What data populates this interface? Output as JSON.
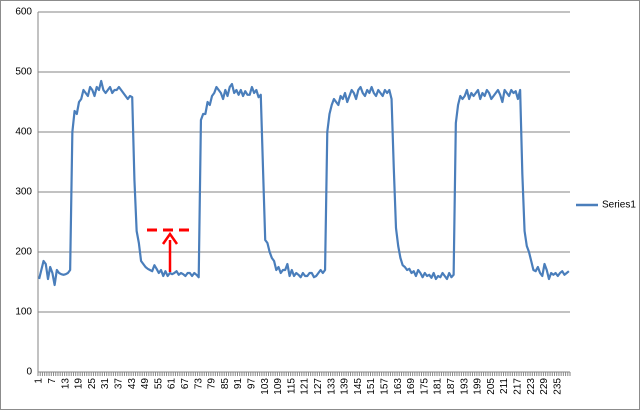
{
  "chart_data": {
    "type": "line",
    "categories": [
      1,
      null,
      null,
      null,
      null,
      null,
      7,
      null,
      null,
      null,
      null,
      null,
      13,
      null,
      null,
      null,
      null,
      null,
      19,
      null,
      null,
      null,
      null,
      null,
      25,
      null,
      null,
      null,
      null,
      null,
      31,
      null,
      null,
      null,
      null,
      null,
      37,
      null,
      null,
      null,
      null,
      null,
      43,
      null,
      null,
      null,
      null,
      null,
      49,
      null,
      null,
      null,
      null,
      null,
      55,
      null,
      null,
      null,
      null,
      null,
      61,
      null,
      null,
      null,
      null,
      null,
      67,
      null,
      null,
      null,
      null,
      null,
      73,
      null,
      null,
      null,
      null,
      null,
      79,
      null,
      null,
      null,
      null,
      null,
      85,
      null,
      null,
      null,
      null,
      null,
      91,
      null,
      null,
      null,
      null,
      null,
      97,
      null,
      null,
      null,
      null,
      null,
      103,
      null,
      null,
      null,
      null,
      null,
      109,
      null,
      null,
      null,
      null,
      null,
      115,
      null,
      null,
      null,
      null,
      null,
      121,
      null,
      null,
      null,
      null,
      null,
      127,
      null,
      null,
      null,
      null,
      null,
      133,
      null,
      null,
      null,
      null,
      null,
      139,
      null,
      null,
      null,
      null,
      null,
      145,
      null,
      null,
      null,
      null,
      null,
      151,
      null,
      null,
      null,
      null,
      null,
      157,
      null,
      null,
      null,
      null,
      null,
      163,
      null,
      null,
      null,
      null,
      null,
      169,
      null,
      null,
      null,
      null,
      null,
      175,
      null,
      null,
      null,
      null,
      null,
      181,
      null,
      null,
      null,
      null,
      null,
      187,
      null,
      null,
      null,
      null,
      null,
      193,
      null,
      null,
      null,
      null,
      null,
      199,
      null,
      null,
      null,
      null,
      null,
      205,
      null,
      null,
      null,
      null,
      null,
      211,
      null,
      null,
      null,
      null,
      null,
      217,
      null,
      null,
      null,
      null,
      null,
      223,
      null,
      null,
      null,
      null,
      null,
      229,
      null,
      null,
      null,
      null,
      null,
      235,
      null,
      null,
      null,
      null,
      null
    ],
    "series": [
      {
        "name": "Series1",
        "color": "#4a7ebb",
        "values": [
          155,
          170,
          185,
          180,
          155,
          175,
          165,
          145,
          170,
          165,
          163,
          162,
          163,
          165,
          170,
          400,
          435,
          430,
          450,
          455,
          470,
          465,
          460,
          475,
          470,
          460,
          475,
          470,
          485,
          470,
          465,
          470,
          475,
          465,
          470,
          470,
          475,
          470,
          465,
          460,
          455,
          460,
          458,
          320,
          235,
          215,
          185,
          180,
          175,
          172,
          170,
          168,
          178,
          172,
          165,
          170,
          160,
          168,
          160,
          165,
          163,
          165,
          168,
          162,
          165,
          163,
          160,
          165,
          165,
          160,
          165,
          162,
          158,
          420,
          430,
          430,
          450,
          445,
          460,
          465,
          475,
          470,
          465,
          455,
          470,
          460,
          475,
          480,
          465,
          470,
          462,
          470,
          460,
          468,
          462,
          462,
          475,
          465,
          470,
          458,
          462,
          340,
          220,
          215,
          200,
          190,
          185,
          170,
          175,
          165,
          170,
          170,
          180,
          160,
          170,
          160,
          165,
          162,
          158,
          165,
          160,
          160,
          165,
          165,
          158,
          160,
          165,
          170,
          165,
          170,
          400,
          430,
          445,
          455,
          450,
          445,
          460,
          455,
          465,
          450,
          460,
          470,
          465,
          455,
          470,
          475,
          465,
          460,
          470,
          465,
          475,
          465,
          460,
          470,
          465,
          460,
          470,
          465,
          470,
          455,
          340,
          240,
          210,
          190,
          178,
          175,
          170,
          172,
          165,
          168,
          160,
          170,
          165,
          158,
          165,
          160,
          162,
          157,
          165,
          155,
          160,
          158,
          165,
          160,
          155,
          165,
          158,
          162,
          415,
          445,
          460,
          455,
          460,
          470,
          455,
          465,
          460,
          465,
          470,
          455,
          465,
          460,
          470,
          465,
          455,
          460,
          465,
          470,
          462,
          450,
          470,
          465,
          460,
          470,
          465,
          468,
          455,
          470,
          330,
          235,
          210,
          200,
          185,
          170,
          168,
          175,
          165,
          160,
          180,
          170,
          155,
          165,
          162,
          165,
          160,
          165,
          168,
          162,
          165,
          168
        ]
      }
    ],
    "ylim": [
      0,
      600
    ],
    "yticks": [
      0,
      100,
      200,
      300,
      400,
      500,
      600
    ],
    "grid": true,
    "legend": "right"
  }
}
